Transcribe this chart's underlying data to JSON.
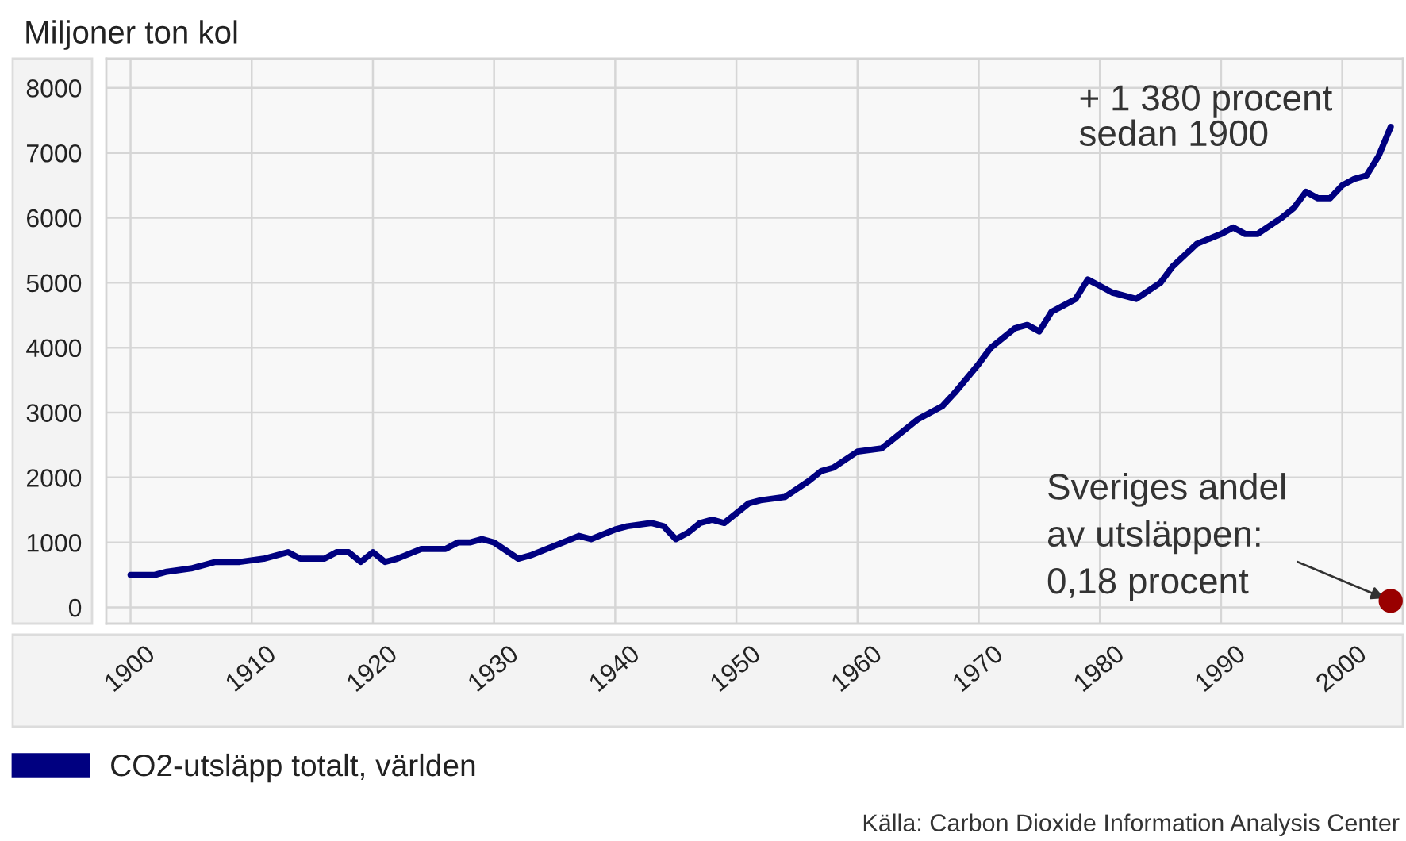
{
  "chart_data": {
    "type": "line",
    "ylabel": "Miljoner ton kol",
    "xlim": [
      1898,
      2005
    ],
    "ylim": [
      -250,
      8450
    ],
    "xticks": [
      1900,
      1910,
      1920,
      1930,
      1940,
      1950,
      1960,
      1970,
      1980,
      1990,
      2000
    ],
    "yticks": [
      0,
      1000,
      2000,
      3000,
      4000,
      5000,
      6000,
      7000,
      8000
    ],
    "grid": true,
    "legend": "bottom",
    "series": [
      {
        "name": "CO2-utsläpp totalt, världen",
        "color": "#000080",
        "x": [
          1900,
          1902,
          1903,
          1905,
          1907,
          1909,
          1911,
          1913,
          1914,
          1916,
          1917,
          1918,
          1919,
          1920,
          1921,
          1922,
          1924,
          1926,
          1927,
          1928,
          1929,
          1930,
          1932,
          1933,
          1935,
          1937,
          1938,
          1940,
          1941,
          1943,
          1944,
          1945,
          1946,
          1947,
          1948,
          1949,
          1951,
          1952,
          1954,
          1956,
          1957,
          1958,
          1960,
          1962,
          1963,
          1965,
          1967,
          1968,
          1970,
          1971,
          1973,
          1974,
          1975,
          1976,
          1977,
          1978,
          1979,
          1980,
          1981,
          1983,
          1985,
          1986,
          1988,
          1990,
          1991,
          1992,
          1993,
          1995,
          1996,
          1997,
          1998,
          1999,
          2000,
          2001,
          2002,
          2003,
          2004
        ],
        "values": [
          500,
          500,
          550,
          600,
          700,
          700,
          750,
          850,
          750,
          750,
          850,
          850,
          700,
          850,
          700,
          750,
          900,
          900,
          1000,
          1000,
          1050,
          1000,
          750,
          800,
          950,
          1100,
          1050,
          1200,
          1250,
          1300,
          1250,
          1050,
          1150,
          1300,
          1350,
          1300,
          1600,
          1650,
          1700,
          1950,
          2100,
          2150,
          2400,
          2450,
          2600,
          2900,
          3100,
          3300,
          3750,
          4000,
          4300,
          4350,
          4250,
          4550,
          4650,
          4750,
          5050,
          4950,
          4850,
          4750,
          5000,
          5250,
          5600,
          5750,
          5850,
          5750,
          5750,
          6000,
          6150,
          6400,
          6300,
          6300,
          6500,
          6600,
          6650,
          6950,
          7400
        ]
      },
      {
        "type": "scatter",
        "color": "#990000",
        "marker": "circle",
        "x": [
          2004
        ],
        "values": [
          100
        ]
      }
    ],
    "annotations": [
      "+ 1 380 procent\nsedan 1900",
      {
        "text": "Sveriges andel\nav utsläppen:\n0,18 procent",
        "x": 2004,
        "y": 100
      },
      "Källa: Carbon Dioxide Information Analysis Center"
    ]
  }
}
